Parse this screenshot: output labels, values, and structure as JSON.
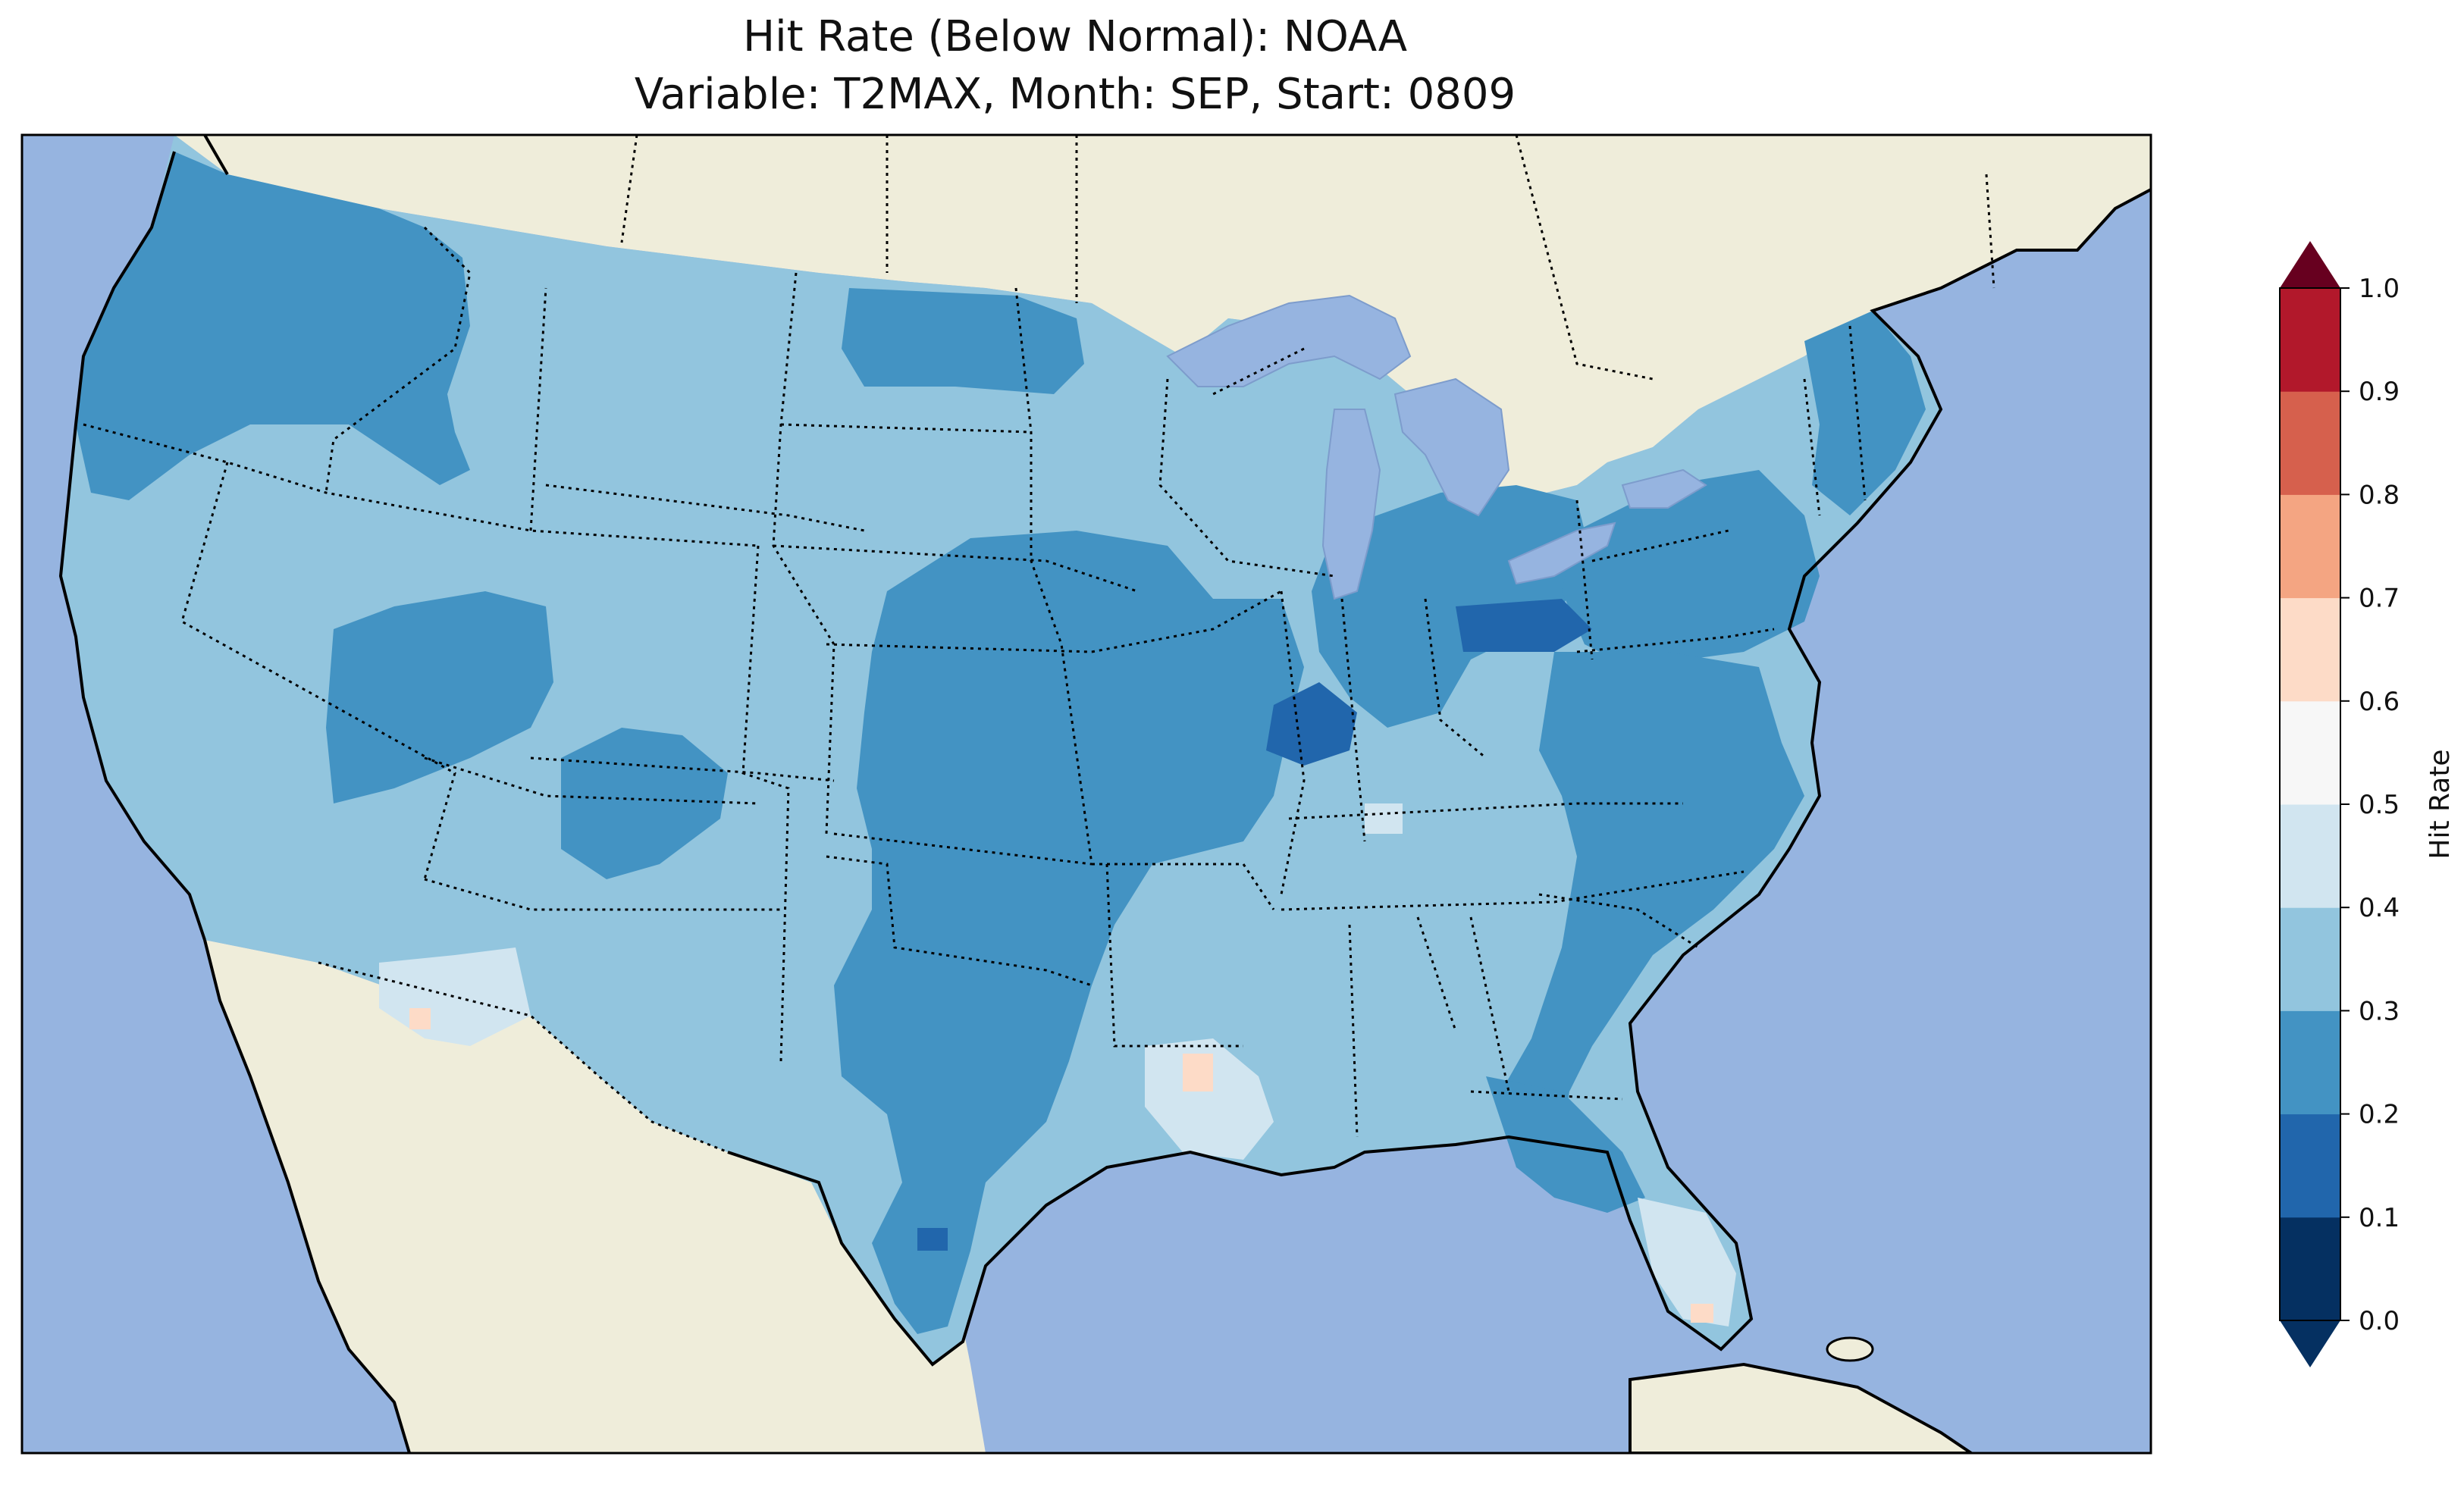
{
  "title": {
    "line1": "Hit Rate (Below Normal): NOAA",
    "line2": "Variable: T2MAX, Month: SEP, Start: 0809"
  },
  "colorbar": {
    "label": "Hit Rate",
    "ticks": [
      "0.0",
      "0.1",
      "0.2",
      "0.3",
      "0.4",
      "0.5",
      "0.6",
      "0.7",
      "0.8",
      "0.9",
      "1.0"
    ],
    "bins": [
      {
        "range": [
          0.0,
          0.1
        ],
        "color": "#053061"
      },
      {
        "range": [
          0.1,
          0.2
        ],
        "color": "#2166ac"
      },
      {
        "range": [
          0.2,
          0.3
        ],
        "color": "#4393c3"
      },
      {
        "range": [
          0.3,
          0.4
        ],
        "color": "#92c5de"
      },
      {
        "range": [
          0.4,
          0.5
        ],
        "color": "#d1e5f0"
      },
      {
        "range": [
          0.5,
          0.6
        ],
        "color": "#f7f7f7"
      },
      {
        "range": [
          0.6,
          0.7
        ],
        "color": "#fddbc7"
      },
      {
        "range": [
          0.7,
          0.8
        ],
        "color": "#f4a582"
      },
      {
        "range": [
          0.8,
          0.9
        ],
        "color": "#d6604d"
      },
      {
        "range": [
          0.9,
          1.0
        ],
        "color": "#b2182b"
      }
    ],
    "extend_min_color": "#053061",
    "extend_max_color": "#67001f"
  },
  "map": {
    "ocean_color": "#96b4e0",
    "land_color": "#efedda",
    "coastline": "solid black",
    "state_borders": "dotted black"
  },
  "chart_data": {
    "type": "heatmap",
    "region": "Contiguous United States",
    "variable": "T2MAX",
    "month": "SEP",
    "start": "0809",
    "model": "NOAA",
    "value_range": [
      0.0,
      1.0
    ],
    "regional_hit_rate_bins": [
      {
        "region": "Pacific Northwest",
        "bin": "0.2-0.3"
      },
      {
        "region": "Northern Rockies (ID)",
        "bin": "0.2-0.3"
      },
      {
        "region": "Northern Plains",
        "bin": "0.3-0.4"
      },
      {
        "region": "California / Great Basin",
        "bin": "0.3-0.4"
      },
      {
        "region": "Southern Arizona",
        "bin": "0.4-0.5"
      },
      {
        "region": "Central Plains (NE, KS, MO, IA)",
        "bin": "0.2-0.3"
      },
      {
        "region": "Illinois core",
        "bin": "0.1-0.2"
      },
      {
        "region": "Northern Ohio",
        "bin": "0.1-0.2"
      },
      {
        "region": "Texas / Oklahoma",
        "bin": "0.2-0.3"
      },
      {
        "region": "Southeast",
        "bin": "0.3-0.4"
      },
      {
        "region": "Mid-Atlantic",
        "bin": "0.2-0.3"
      },
      {
        "region": "Southern Florida",
        "bin": "0.4-0.5"
      },
      {
        "region": "Lower Mississippi Valley",
        "bin": "0.4-0.5"
      }
    ]
  }
}
